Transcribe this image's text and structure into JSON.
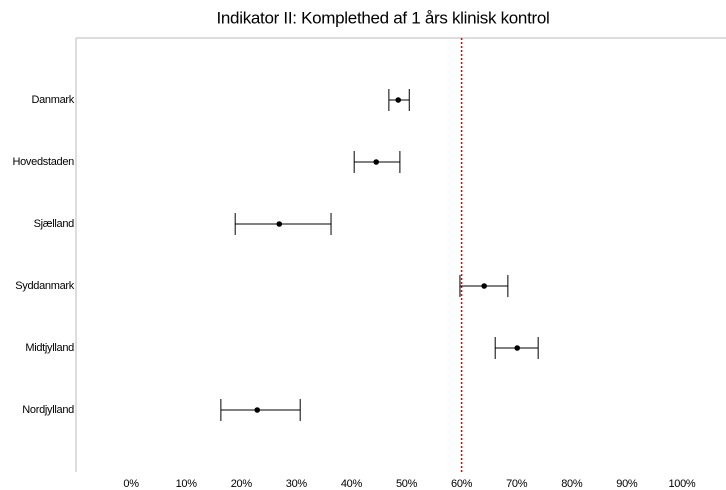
{
  "chart_data": {
    "type": "errorbar",
    "title": "Indikator II: Komplethed af 1 års klinisk kontrol",
    "categories": [
      "Danmark",
      "Hovedstaden",
      "Sjælland",
      "Syddanmark",
      "Midtjylland",
      "Nordjylland"
    ],
    "values": [
      48.5,
      44.5,
      26.9,
      64.1,
      70.1,
      22.9
    ],
    "lower": [
      46.8,
      40.5,
      18.9,
      59.7,
      66.1,
      16.3
    ],
    "upper": [
      50.5,
      48.8,
      36.3,
      68.4,
      73.9,
      30.7
    ],
    "color": "#000000",
    "reference_line": 60,
    "reference_color": "#e00000",
    "xlim": [
      -10,
      108
    ],
    "xticks": [
      {
        "value": 0,
        "label": "0%"
      },
      {
        "value": 10,
        "label": "10%"
      },
      {
        "value": 20,
        "label": "20%"
      },
      {
        "value": 30,
        "label": "30%"
      },
      {
        "value": 40,
        "label": "40%"
      },
      {
        "value": 50,
        "label": "50%"
      },
      {
        "value": 60,
        "label": "60%"
      },
      {
        "value": 70,
        "label": "70%"
      },
      {
        "value": 80,
        "label": "80%"
      },
      {
        "value": 90,
        "label": "90%"
      },
      {
        "value": 100,
        "label": "100%"
      }
    ]
  }
}
